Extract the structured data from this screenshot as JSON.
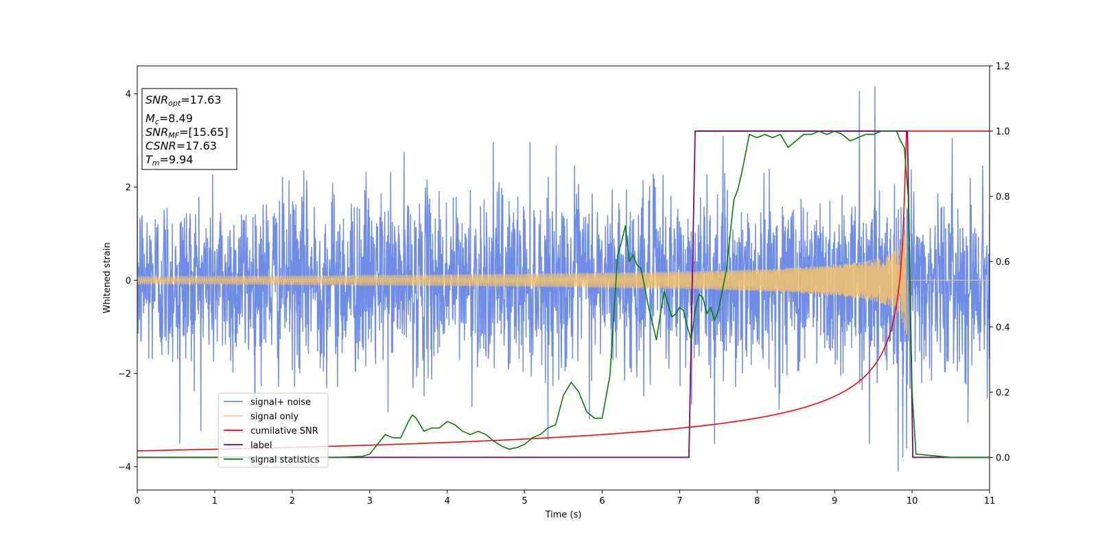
{
  "chart_data": {
    "type": "line",
    "xlabel": "Time (s)",
    "ylabel": "Whitened strain",
    "xlim": [
      0,
      11
    ],
    "ylim_left": [
      -4.5,
      4.6
    ],
    "ylim_right": [
      -0.1,
      1.2
    ],
    "x_ticks": [
      "0",
      "1",
      "2",
      "3",
      "4",
      "5",
      "6",
      "7",
      "8",
      "9",
      "10",
      "11"
    ],
    "y_ticks_left": [
      "−4",
      "−2",
      "0",
      "2",
      "4"
    ],
    "y_ticks_right": [
      "0.0",
      "0.2",
      "0.4",
      "0.6",
      "0.8",
      "1.0",
      "1.2"
    ],
    "grid": false,
    "legend_position": "lower-left",
    "info_box": {
      "snr_opt": {
        "sym": "SNR",
        "sub": "opt",
        "val": "=17.63"
      },
      "mc": {
        "sym": "M",
        "sub": "c",
        "val": "=8.49"
      },
      "snr_mf": {
        "sym": "SNR",
        "sub": "MF",
        "val": "=[15.65]"
      },
      "csnr": {
        "sym": "CSNR",
        "sub": "",
        "val": "=17.63"
      },
      "tm": {
        "sym": "T",
        "sub": "m",
        "val": "=9.94"
      }
    },
    "series": [
      {
        "name": "signal+ noise",
        "axis": "left",
        "color": "#6f8de6",
        "kind": "noise",
        "noise_std": 0.95,
        "signal_amp_start": 0.08,
        "signal_amp_end": 1.25,
        "merger_time": 9.94,
        "extreme_peaks": [
          [
            9.52,
            4.15
          ],
          [
            9.32,
            4.05
          ],
          [
            9.82,
            -4.1
          ],
          [
            9.88,
            -3.8
          ],
          [
            0.55,
            -3.5
          ],
          [
            7.45,
            -3.5
          ],
          [
            9.45,
            -3.5
          ]
        ]
      },
      {
        "name": "signal only",
        "axis": "left",
        "color": "#f5c26b",
        "kind": "chirp",
        "amp_start": 0.08,
        "amp_end": 1.25,
        "merger_time": 9.94
      },
      {
        "name": "cumilative SNR",
        "axis": "right",
        "color": "#ff0000",
        "kind": "cumulative",
        "start_value": 0.02,
        "end_value": 1.0,
        "merger_time": 9.94
      },
      {
        "name": "label",
        "axis": "right",
        "color": "#800080",
        "kind": "step",
        "x": [
          0,
          7.12,
          7.2,
          9.94,
          10.01,
          11
        ],
        "y": [
          0,
          0,
          1,
          1,
          0,
          0
        ]
      },
      {
        "name": "signal statistics",
        "axis": "right",
        "color": "#008000",
        "kind": "points",
        "x": [
          0,
          0.5,
          1.0,
          1.5,
          2.0,
          2.5,
          2.7,
          2.9,
          3.0,
          3.1,
          3.2,
          3.3,
          3.4,
          3.5,
          3.55,
          3.6,
          3.7,
          3.8,
          3.9,
          4.0,
          4.1,
          4.2,
          4.3,
          4.4,
          4.5,
          4.6,
          4.7,
          4.8,
          4.9,
          5.0,
          5.1,
          5.2,
          5.3,
          5.4,
          5.5,
          5.6,
          5.7,
          5.8,
          5.9,
          6.0,
          6.1,
          6.2,
          6.25,
          6.3,
          6.35,
          6.4,
          6.45,
          6.5,
          6.6,
          6.7,
          6.8,
          6.9,
          6.95,
          7.0,
          7.05,
          7.1,
          7.15,
          7.2,
          7.25,
          7.3,
          7.35,
          7.4,
          7.45,
          7.5,
          7.6,
          7.7,
          7.75,
          7.8,
          7.9,
          8.0,
          8.1,
          8.2,
          8.3,
          8.4,
          8.5,
          8.6,
          8.7,
          8.8,
          8.9,
          9.0,
          9.1,
          9.2,
          9.3,
          9.4,
          9.5,
          9.6,
          9.7,
          9.8,
          9.85,
          9.9,
          9.95,
          10.0,
          10.05,
          10.5,
          11.0
        ],
        "y": [
          0.0,
          0.0,
          0.0,
          0.0,
          0.0,
          0.0,
          0.001,
          0.003,
          0.01,
          0.04,
          0.07,
          0.06,
          0.06,
          0.11,
          0.13,
          0.12,
          0.08,
          0.09,
          0.09,
          0.11,
          0.1,
          0.08,
          0.07,
          0.08,
          0.07,
          0.05,
          0.035,
          0.025,
          0.03,
          0.04,
          0.06,
          0.07,
          0.09,
          0.1,
          0.19,
          0.23,
          0.2,
          0.14,
          0.12,
          0.12,
          0.25,
          0.62,
          0.66,
          0.71,
          0.6,
          0.62,
          0.59,
          0.58,
          0.46,
          0.36,
          0.51,
          0.43,
          0.44,
          0.46,
          0.45,
          0.4,
          0.36,
          0.45,
          0.5,
          0.49,
          0.44,
          0.46,
          0.42,
          0.45,
          0.57,
          0.79,
          0.82,
          0.87,
          0.99,
          0.98,
          0.99,
          0.98,
          0.99,
          0.95,
          0.97,
          0.99,
          0.99,
          1.0,
          0.99,
          1.0,
          0.99,
          0.97,
          0.98,
          0.99,
          0.99,
          1.0,
          1.0,
          1.0,
          0.97,
          0.95,
          0.8,
          0.2,
          0.01,
          0.0,
          0.0
        ]
      }
    ]
  }
}
